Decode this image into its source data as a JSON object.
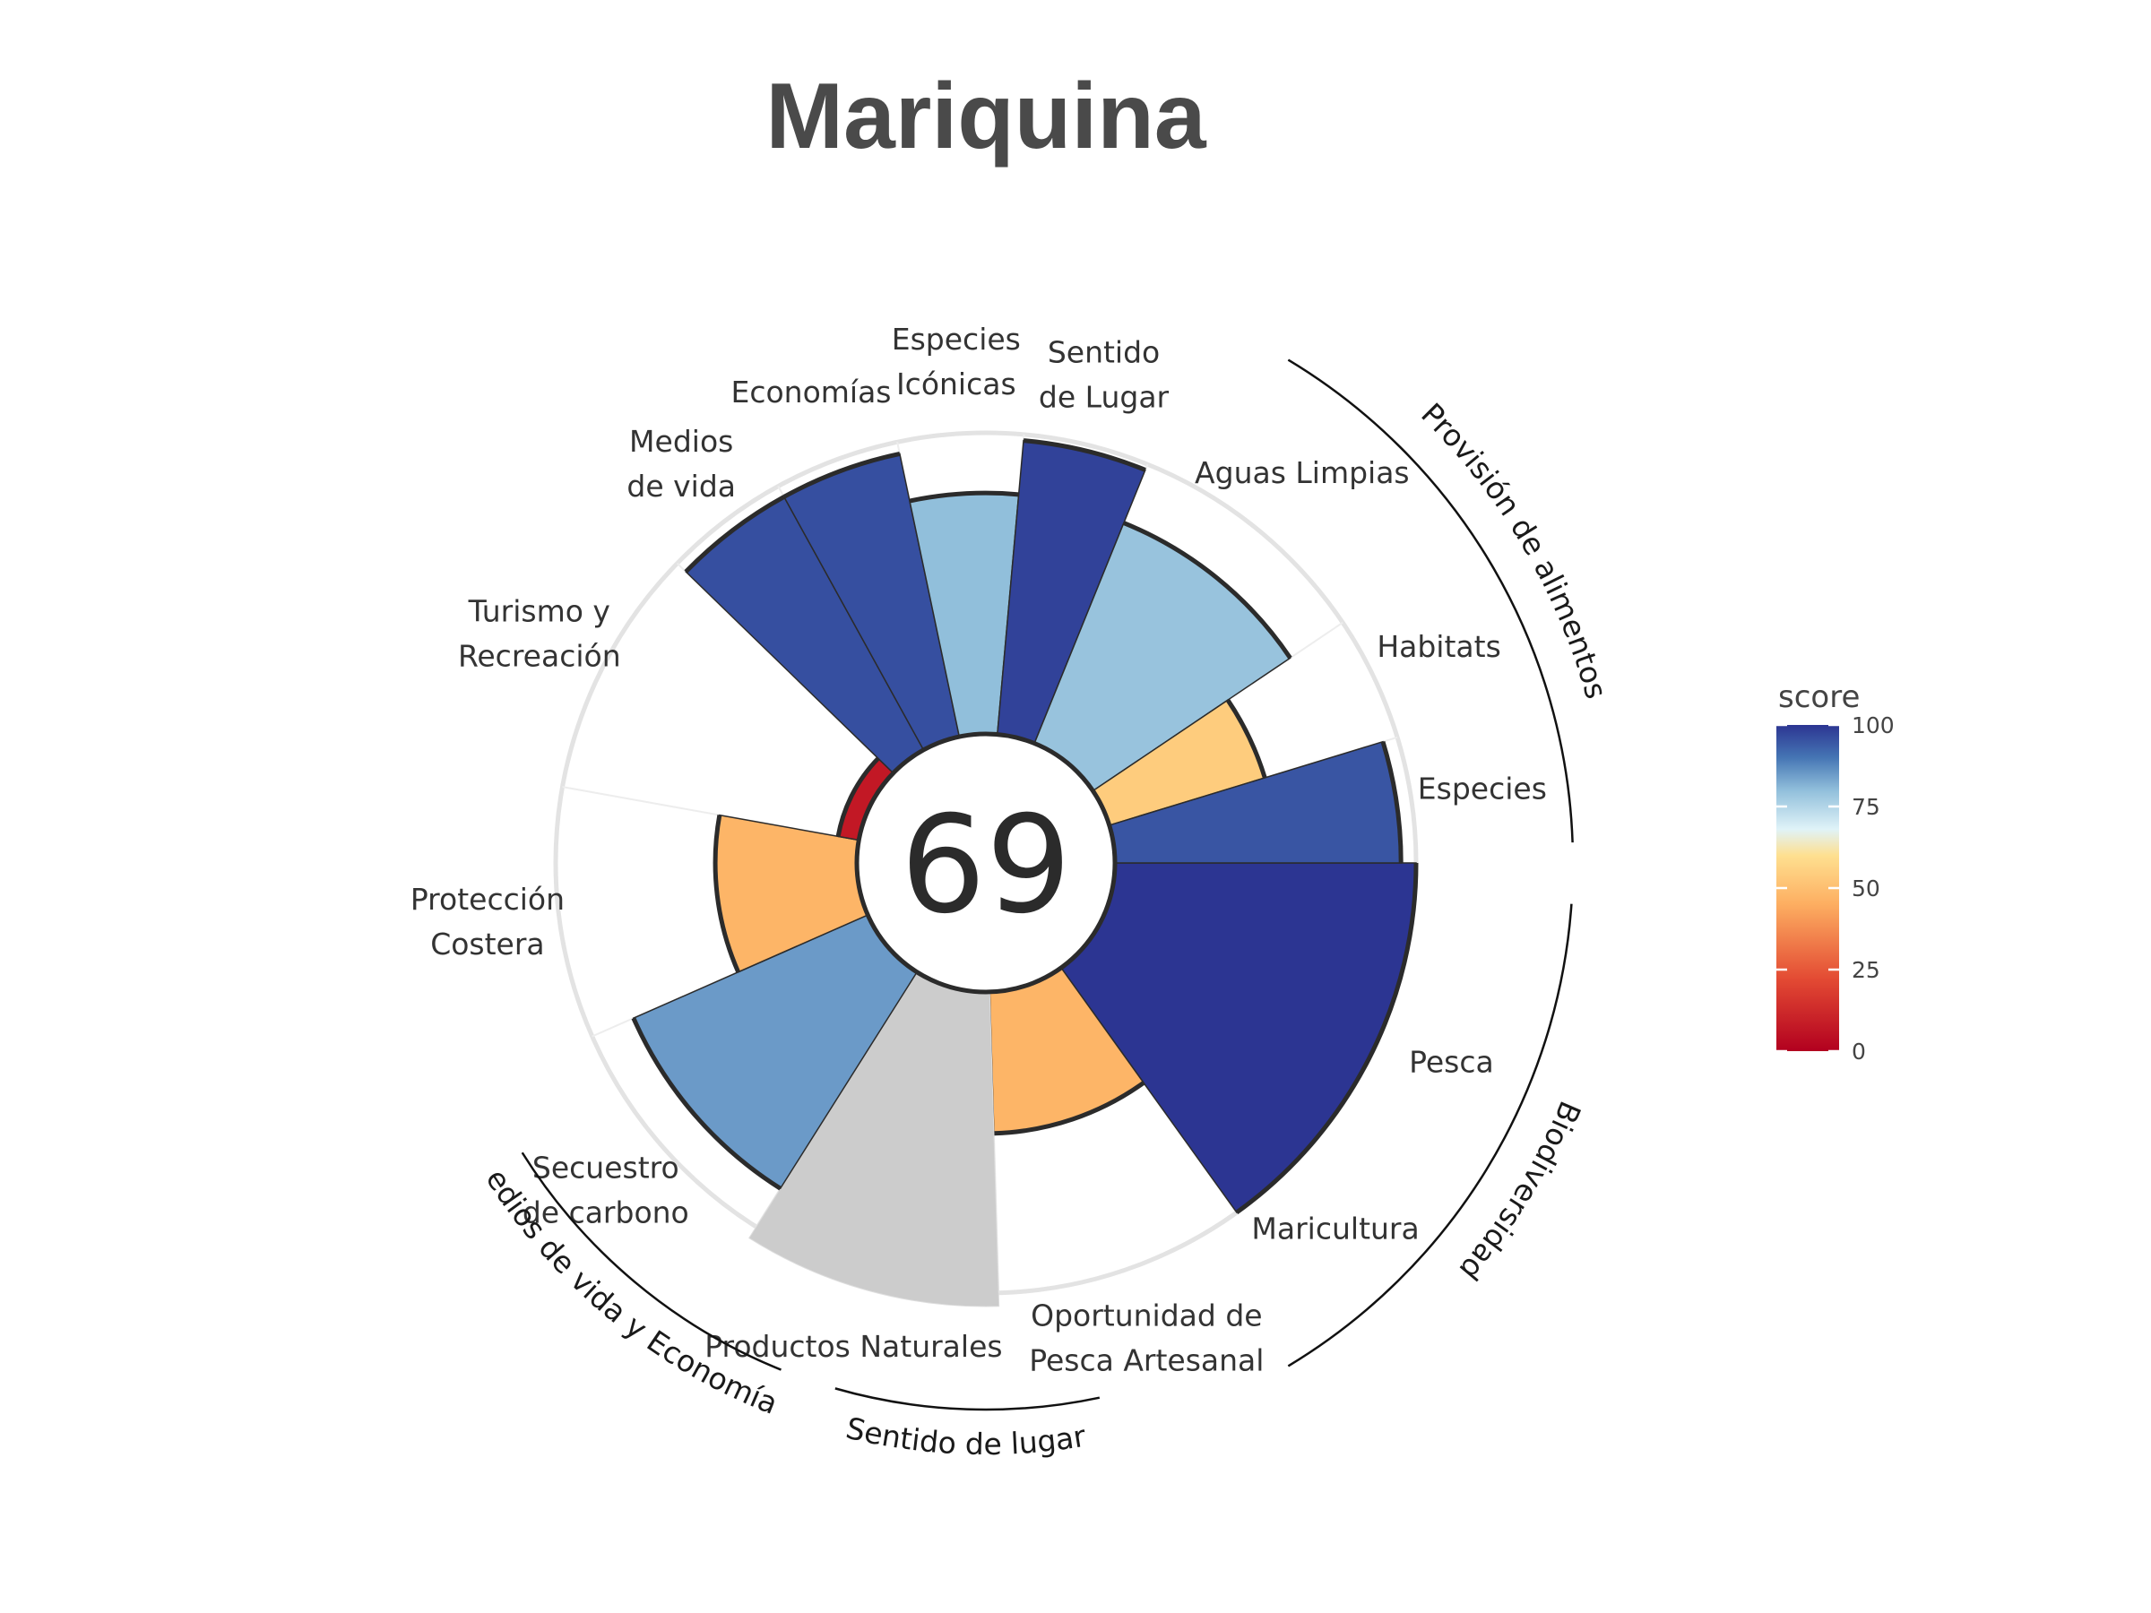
{
  "chart_data": {
    "type": "polar-bar",
    "title": "Mariquina",
    "center_score": "69",
    "axis_max": 100,
    "goals": [
      {
        "name": "Pesca",
        "label": [
          "Pesca"
        ],
        "score": 100,
        "weight": 1.6
      },
      {
        "name": "Maricultura",
        "label": [
          "Maricultura"
        ],
        "score": null,
        "weight": 0.0
      },
      {
        "name": "Oportunidad de Pesca Artesanal",
        "label": [
          "Oportunidad de",
          "Pesca Artesanal"
        ],
        "score": 47,
        "weight": 1.0
      },
      {
        "name": "Productos Naturales",
        "label": [
          "Productos Naturales"
        ],
        "score": null,
        "weight": 1.0
      },
      {
        "name": "Secuestro de carbono",
        "label": [
          "Secuestro",
          "de carbono"
        ],
        "score": 85,
        "weight": 1.0
      },
      {
        "name": "Protección Costera",
        "label": [
          "Protección",
          "Costera"
        ],
        "score": 47,
        "weight": 1.0
      },
      {
        "name": "Turismo y Recreación",
        "label": [
          "Turismo y",
          "Recreación"
        ],
        "score": 7,
        "weight": 1.0
      },
      {
        "name": "Medios de vida",
        "label": [
          "Medios",
          "de vida"
        ],
        "score": 96,
        "weight": 0.5
      },
      {
        "name": "Economías",
        "label": [
          "Economías"
        ],
        "score": 96,
        "weight": 0.5
      },
      {
        "name": "Especies Icónicas",
        "label": [
          "Especies",
          "Icónicas"
        ],
        "score": 80,
        "weight": 0.5
      },
      {
        "name": "Sentido de Lugar",
        "label": [
          "Sentido",
          "de Lugar"
        ],
        "score": 98,
        "weight": 0.5
      },
      {
        "name": "Aguas Limpias",
        "label": [
          "Aguas Limpias"
        ],
        "score": 79,
        "weight": 1.0
      },
      {
        "name": "Habitats",
        "label": [
          "Habitats"
        ],
        "score": 54,
        "weight": 0.5
      },
      {
        "name": "Especies",
        "label": [
          "Especies"
        ],
        "score": 95,
        "weight": 0.5
      }
    ],
    "groups": [
      {
        "name": "Provisión de alimentos"
      },
      {
        "name": "Biodiversidad"
      },
      {
        "name": "Sentido de lugar"
      },
      {
        "name": "Medios de vida y Economías"
      }
    ],
    "legend": {
      "title": "score",
      "ticks": [
        "0",
        "25",
        "50",
        "75",
        "100"
      ],
      "colors": [
        "#b2182b",
        "#d6604d",
        "#f4a582",
        "#fdd49e",
        "#e0f3f8",
        "#92c5de",
        "#4393c3",
        "#2c3e99"
      ]
    }
  }
}
